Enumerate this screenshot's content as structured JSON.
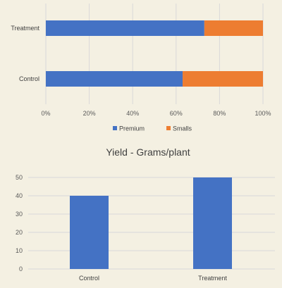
{
  "chart_data": [
    {
      "type": "bar",
      "orientation": "horizontal",
      "stacked": "percent",
      "categories": [
        "Treatment",
        "Control"
      ],
      "series": [
        {
          "name": "Premium",
          "color": "#4472c4",
          "values": [
            73,
            63
          ]
        },
        {
          "name": "Smalls",
          "color": "#ed7d31",
          "values": [
            27,
            37
          ]
        }
      ],
      "x_ticks": [
        "0%",
        "20%",
        "40%",
        "60%",
        "80%",
        "100%"
      ],
      "xlim": [
        0,
        100
      ],
      "grid": true,
      "legend_position": "bottom"
    },
    {
      "type": "bar",
      "title": "Yield - Grams/plant",
      "categories": [
        "Control",
        "Treatment"
      ],
      "series": [
        {
          "color": "#4472c4",
          "values": [
            40,
            50
          ]
        }
      ],
      "y_ticks": [
        "0",
        "10",
        "20",
        "30",
        "40",
        "50"
      ],
      "ylim": [
        0,
        50
      ],
      "grid": true
    }
  ]
}
